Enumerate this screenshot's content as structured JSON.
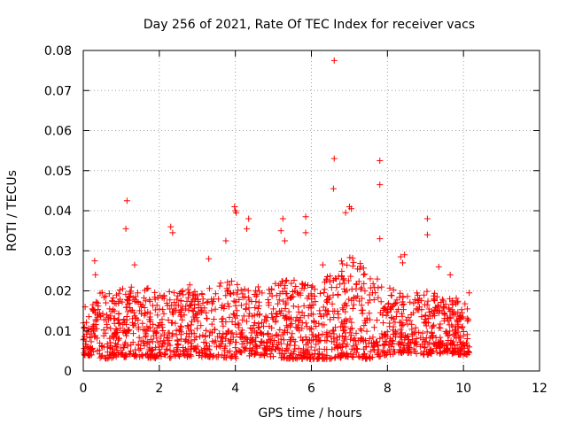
{
  "chart_data": {
    "type": "scatter",
    "title": "Day 256 of 2021, Rate Of TEC Index for receiver vacs",
    "xlabel": "GPS time / hours",
    "ylabel": "ROTI / TECUs",
    "xlim": [
      0,
      12
    ],
    "ylim": [
      0,
      0.08
    ],
    "x_ticks": [
      0,
      2,
      4,
      6,
      8,
      10,
      12
    ],
    "x_tick_labels": [
      "0",
      "2",
      "4",
      "6",
      "8",
      "10",
      "12"
    ],
    "y_ticks": [
      0,
      0.01,
      0.02,
      0.03,
      0.04,
      0.05,
      0.06,
      0.07,
      0.08
    ],
    "y_tick_labels": [
      "0",
      "0.01",
      "0.02",
      "0.03",
      "0.04",
      "0.05",
      "0.06",
      "0.07",
      "0.08"
    ],
    "grid": true,
    "marker": "+",
    "series": [
      {
        "name": "ROTI",
        "color": "#ff0000",
        "points": [
          [
            6.6,
            0.0775
          ],
          [
            6.6,
            0.053
          ],
          [
            6.58,
            0.0455
          ],
          [
            7.8,
            0.0525
          ],
          [
            7.8,
            0.0465
          ],
          [
            1.15,
            0.0425
          ],
          [
            1.12,
            0.0355
          ],
          [
            3.98,
            0.041
          ],
          [
            4.02,
            0.0395
          ],
          [
            4.0,
            0.04
          ],
          [
            7.0,
            0.041
          ],
          [
            7.05,
            0.0405
          ],
          [
            6.9,
            0.0395
          ],
          [
            9.05,
            0.038
          ],
          [
            9.05,
            0.034
          ],
          [
            5.25,
            0.038
          ],
          [
            5.2,
            0.035
          ],
          [
            5.3,
            0.0325
          ],
          [
            5.85,
            0.0385
          ],
          [
            5.85,
            0.0345
          ],
          [
            4.35,
            0.038
          ],
          [
            4.3,
            0.0355
          ],
          [
            2.3,
            0.036
          ],
          [
            2.35,
            0.0345
          ],
          [
            3.75,
            0.0325
          ],
          [
            7.8,
            0.033
          ],
          [
            8.45,
            0.029
          ],
          [
            8.35,
            0.0285
          ],
          [
            8.4,
            0.027
          ],
          [
            9.35,
            0.026
          ],
          [
            9.65,
            0.024
          ],
          [
            0.3,
            0.0275
          ],
          [
            0.32,
            0.024
          ],
          [
            1.35,
            0.0265
          ],
          [
            3.3,
            0.028
          ],
          [
            4.6,
            0.021
          ],
          [
            2.8,
            0.0215
          ],
          [
            0.05,
            0.016
          ],
          [
            10.15,
            0.0195
          ],
          [
            10.1,
            0.0155
          ],
          [
            0.0,
            0.012
          ],
          [
            0.05,
            0.005
          ],
          [
            10.15,
            0.006
          ],
          [
            5.0,
            0.0155
          ],
          [
            6.3,
            0.0265
          ]
        ]
      }
    ],
    "density_envelope": {
      "hours": [
        0,
        0.5,
        1,
        1.5,
        2,
        2.5,
        3,
        3.5,
        4,
        4.5,
        5,
        5.5,
        6,
        6.5,
        7,
        7.5,
        8,
        8.5,
        9,
        9.5,
        10,
        10.15
      ],
      "upper": [
        0.017,
        0.02,
        0.021,
        0.022,
        0.019,
        0.021,
        0.02,
        0.022,
        0.024,
        0.02,
        0.022,
        0.023,
        0.022,
        0.024,
        0.03,
        0.025,
        0.021,
        0.019,
        0.02,
        0.019,
        0.018,
        0.016
      ],
      "lower": [
        0.004,
        0.003,
        0.0035,
        0.0035,
        0.003,
        0.0035,
        0.0035,
        0.0035,
        0.003,
        0.004,
        0.0035,
        0.003,
        0.003,
        0.003,
        0.0035,
        0.003,
        0.004,
        0.0045,
        0.004,
        0.0045,
        0.004,
        0.004
      ]
    }
  }
}
